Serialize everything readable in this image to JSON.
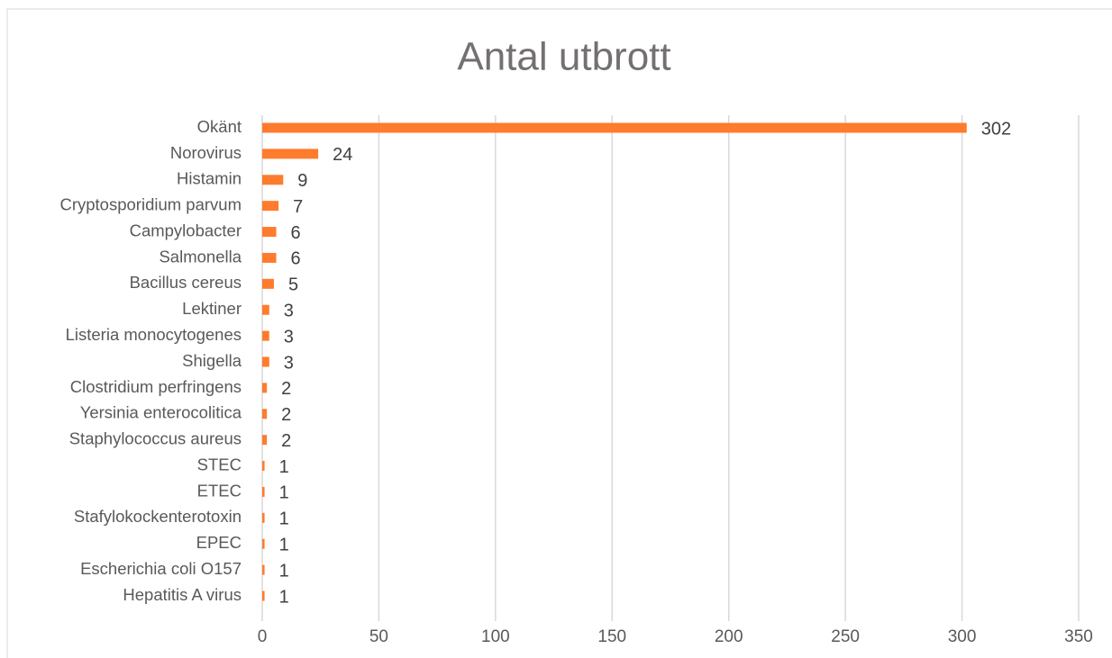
{
  "chart_data": {
    "type": "bar",
    "orientation": "horizontal",
    "title": "Antal utbrott",
    "categories": [
      "Okänt",
      "Norovirus",
      "Histamin",
      "Cryptosporidium parvum",
      "Campylobacter",
      "Salmonella",
      "Bacillus cereus",
      "Lektiner",
      "Listeria monocytogenes",
      "Shigella",
      "Clostridium perfringens",
      "Yersinia enterocolitica",
      "Staphylococcus aureus",
      "STEC",
      "ETEC",
      "Stafylokockenterotoxin",
      "EPEC",
      "Escherichia coli O157",
      "Hepatitis A virus"
    ],
    "values": [
      302,
      24,
      9,
      7,
      6,
      6,
      5,
      3,
      3,
      3,
      2,
      2,
      2,
      1,
      1,
      1,
      1,
      1,
      1
    ],
    "color": "#ff7b2e",
    "xlim": [
      0,
      350
    ],
    "xticks": [
      0,
      50,
      100,
      150,
      200,
      250,
      300,
      350
    ],
    "grid": true
  }
}
